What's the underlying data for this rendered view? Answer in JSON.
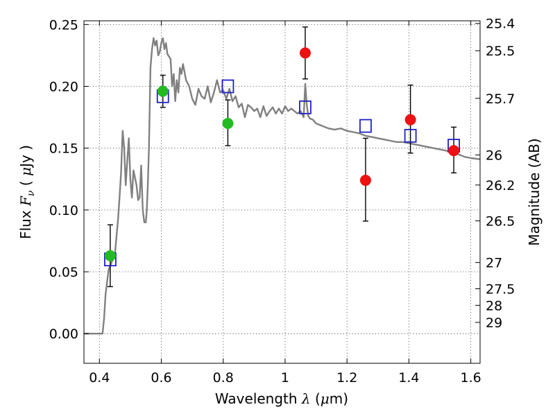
{
  "chart_data": {
    "type": "scatter",
    "xlabel": "Wavelength  λ (μm)",
    "ylabel": "Flux  F_ν  ( μJy )",
    "ylabel_parts": {
      "a": "Flux  ",
      "b": "F",
      "c": "ν",
      "d": "  ( ",
      "e": "μ",
      "f": "Jy )"
    },
    "xlabel_parts": {
      "a": "Wavelength  ",
      "b": "λ",
      "c": " (",
      "d": "μ",
      "e": "m)"
    },
    "y2label": "Magnitude (AB)",
    "xlim": [
      0.35,
      1.63
    ],
    "ylim": [
      -0.024,
      0.253
    ],
    "grid": true,
    "x_ticks": [
      {
        "value": 0.4,
        "label": "0.4"
      },
      {
        "value": 0.6,
        "label": "0.6"
      },
      {
        "value": 0.8,
        "label": "0.8"
      },
      {
        "value": 1.0,
        "label": "1"
      },
      {
        "value": 1.2,
        "label": "1.2"
      },
      {
        "value": 1.4,
        "label": "1.4"
      },
      {
        "value": 1.6,
        "label": "1.6"
      }
    ],
    "y_ticks": [
      {
        "value": 0.0,
        "label": "0.00"
      },
      {
        "value": 0.05,
        "label": "0.05"
      },
      {
        "value": 0.1,
        "label": "0.10"
      },
      {
        "value": 0.15,
        "label": "0.15"
      },
      {
        "value": 0.2,
        "label": "0.20"
      },
      {
        "value": 0.25,
        "label": "0.25"
      }
    ],
    "mag_ticks": [
      {
        "flux": 0.2509,
        "label": "25.4"
      },
      {
        "flux": 0.2288,
        "label": "25.5"
      },
      {
        "flux": 0.1903,
        "label": "25.7"
      },
      {
        "flux": 0.1445,
        "label": "26"
      },
      {
        "flux": 0.1202,
        "label": "26.2"
      },
      {
        "flux": 0.0912,
        "label": "26.5"
      },
      {
        "flux": 0.0575,
        "label": "27"
      },
      {
        "flux": 0.0363,
        "label": "27.5"
      },
      {
        "flux": 0.0229,
        "label": "28"
      },
      {
        "flux": 0.0091,
        "label": "29"
      }
    ],
    "series": [
      {
        "kind": "line",
        "color": "#808080",
        "x": [
          0.35,
          0.41,
          0.415,
          0.42,
          0.43,
          0.44,
          0.45,
          0.455,
          0.46,
          0.465,
          0.47,
          0.475,
          0.48,
          0.485,
          0.49,
          0.495,
          0.5,
          0.505,
          0.51,
          0.52,
          0.525,
          0.53,
          0.535,
          0.54,
          0.545,
          0.55,
          0.553,
          0.556,
          0.56,
          0.565,
          0.57,
          0.575,
          0.58,
          0.585,
          0.59,
          0.595,
          0.6,
          0.605,
          0.61,
          0.615,
          0.62,
          0.625,
          0.63,
          0.635,
          0.64,
          0.645,
          0.65,
          0.655,
          0.66,
          0.665,
          0.67,
          0.68,
          0.69,
          0.7,
          0.71,
          0.72,
          0.73,
          0.74,
          0.75,
          0.76,
          0.77,
          0.78,
          0.79,
          0.8,
          0.81,
          0.82,
          0.83,
          0.84,
          0.85,
          0.86,
          0.87,
          0.88,
          0.89,
          0.9,
          0.91,
          0.92,
          0.93,
          0.94,
          0.95,
          0.96,
          0.97,
          0.98,
          0.99,
          1.0,
          1.01,
          1.02,
          1.03,
          1.04,
          1.05,
          1.06,
          1.065,
          1.07,
          1.075,
          1.08,
          1.09,
          1.1,
          1.12,
          1.14,
          1.16,
          1.18,
          1.2,
          1.22,
          1.24,
          1.26,
          1.28,
          1.3,
          1.32,
          1.34,
          1.36,
          1.38,
          1.4,
          1.42,
          1.44,
          1.46,
          1.48,
          1.5,
          1.52,
          1.54,
          1.56,
          1.58,
          1.6,
          1.63
        ],
        "y": [
          0.0,
          0.0,
          0.012,
          0.032,
          0.052,
          0.058,
          0.064,
          0.078,
          0.092,
          0.11,
          0.13,
          0.164,
          0.15,
          0.12,
          0.14,
          0.158,
          0.125,
          0.11,
          0.132,
          0.12,
          0.108,
          0.11,
          0.136,
          0.1,
          0.09,
          0.09,
          0.1,
          0.118,
          0.15,
          0.215,
          0.23,
          0.239,
          0.233,
          0.237,
          0.225,
          0.228,
          0.235,
          0.239,
          0.23,
          0.235,
          0.226,
          0.224,
          0.222,
          0.2,
          0.21,
          0.188,
          0.205,
          0.195,
          0.215,
          0.21,
          0.218,
          0.205,
          0.2,
          0.19,
          0.185,
          0.198,
          0.192,
          0.19,
          0.2,
          0.187,
          0.195,
          0.205,
          0.195,
          0.197,
          0.19,
          0.198,
          0.188,
          0.192,
          0.183,
          0.186,
          0.175,
          0.185,
          0.183,
          0.18,
          0.182,
          0.175,
          0.184,
          0.176,
          0.18,
          0.183,
          0.178,
          0.182,
          0.178,
          0.184,
          0.18,
          0.182,
          0.18,
          0.178,
          0.18,
          0.175,
          0.202,
          0.185,
          0.176,
          0.174,
          0.173,
          0.17,
          0.168,
          0.166,
          0.165,
          0.166,
          0.164,
          0.163,
          0.162,
          0.16,
          0.159,
          0.158,
          0.157,
          0.156,
          0.155,
          0.155,
          0.154,
          0.153,
          0.152,
          0.151,
          0.15,
          0.149,
          0.148,
          0.147,
          0.145,
          0.143,
          0.142,
          0.141
        ]
      },
      {
        "kind": "square",
        "color": "#1f1fcc",
        "x": [
          0.435,
          0.605,
          0.815,
          1.065,
          1.26,
          1.405,
          1.545
        ],
        "y": [
          0.06,
          0.192,
          0.2,
          0.183,
          0.168,
          0.16,
          0.152
        ]
      },
      {
        "kind": "circle",
        "color": "#22bb22",
        "x": [
          0.435,
          0.605,
          0.815
        ],
        "y": [
          0.063,
          0.196,
          0.17
        ],
        "yerr_low": [
          0.038,
          0.183,
          0.152
        ],
        "yerr_high": [
          0.088,
          0.209,
          0.189
        ]
      },
      {
        "kind": "circle",
        "color": "#ee1111",
        "x": [
          1.065,
          1.26,
          1.405,
          1.545
        ],
        "y": [
          0.227,
          0.124,
          0.173,
          0.148
        ],
        "yerr_low": [
          0.206,
          0.091,
          0.146,
          0.13
        ],
        "yerr_high": [
          0.248,
          0.158,
          0.201,
          0.167
        ]
      }
    ]
  }
}
